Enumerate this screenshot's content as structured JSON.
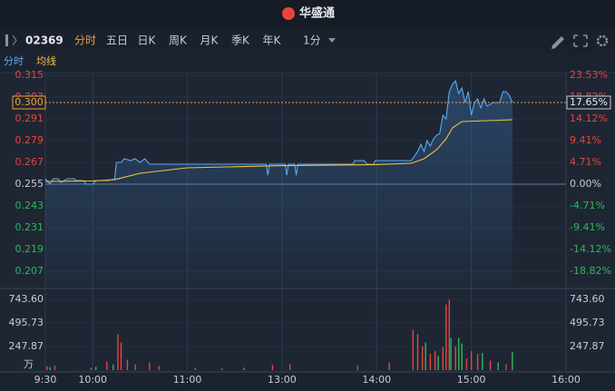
{
  "header": {
    "logo": "华盛通"
  },
  "toolbar": {
    "code": "02369",
    "tabs": [
      "分时",
      "五日",
      "日K",
      "周K",
      "月K",
      "季K",
      "年K"
    ],
    "period": "1分"
  },
  "chart_data": {
    "type": "line",
    "xlim": [
      0,
      330
    ],
    "xticks": [
      {
        "value": 0,
        "label": "9:30"
      },
      {
        "value": 30,
        "label": "10:00"
      },
      {
        "value": 90,
        "label": "11:00"
      },
      {
        "value": 150,
        "label": "13:00"
      },
      {
        "value": 210,
        "label": "14:00"
      },
      {
        "value": 270,
        "label": "15:00"
      },
      {
        "value": 330,
        "label": "16:00"
      }
    ],
    "ylim": [
      0.199,
      0.3165
    ],
    "yticks": [
      0.315,
      0.303,
      0.291,
      0.279,
      0.267,
      0.255,
      0.243,
      0.231,
      0.219,
      0.207
    ],
    "y2lim": [
      -21.96,
      24.12
    ],
    "y2ticks": [
      {
        "value": 23.53,
        "label": "23.53%"
      },
      {
        "value": 18.82,
        "label": "18.82%"
      },
      {
        "value": 14.12,
        "label": "14.12%"
      },
      {
        "value": 9.41,
        "label": "9.41%"
      },
      {
        "value": 4.71,
        "label": "4.71%"
      },
      {
        "value": 0,
        "label": "0.00%"
      },
      {
        "value": -4.71,
        "label": "-4.71%"
      },
      {
        "value": -9.41,
        "label": "-9.41%"
      },
      {
        "value": -14.12,
        "label": "-14.12%"
      },
      {
        "value": -18.82,
        "label": "-18.82%"
      }
    ],
    "series": [
      {
        "name": "分时",
        "color": "#5aa9f0",
        "x": [
          0,
          3,
          5,
          8,
          10,
          14,
          18,
          20,
          24,
          26,
          30,
          32,
          40,
          44,
          45,
          48,
          50,
          54,
          57,
          60,
          63,
          66,
          100,
          140,
          141,
          142,
          152,
          153,
          154,
          158,
          159,
          160,
          195,
          196,
          202,
          204,
          208,
          209,
          215,
          232,
          236,
          238,
          240,
          242,
          244,
          246,
          248,
          250,
          252,
          254,
          256,
          258,
          260,
          262,
          264,
          266,
          268,
          270,
          272,
          274,
          276,
          278,
          280,
          284,
          288,
          290,
          292,
          294,
          296
        ],
        "values": [
          0.258,
          0.255,
          0.258,
          0.258,
          0.256,
          0.258,
          0.258,
          0.257,
          0.257,
          0.255,
          0.255,
          0.257,
          0.257,
          0.258,
          0.267,
          0.267,
          0.269,
          0.268,
          0.269,
          0.267,
          0.269,
          0.266,
          0.266,
          0.266,
          0.26,
          0.266,
          0.266,
          0.26,
          0.266,
          0.266,
          0.26,
          0.266,
          0.266,
          0.268,
          0.268,
          0.266,
          0.266,
          0.268,
          0.268,
          0.268,
          0.273,
          0.277,
          0.273,
          0.279,
          0.276,
          0.28,
          0.282,
          0.283,
          0.293,
          0.291,
          0.306,
          0.31,
          0.312,
          0.305,
          0.308,
          0.3,
          0.306,
          0.293,
          0.3,
          0.302,
          0.297,
          0.302,
          0.298,
          0.3,
          0.3,
          0.306,
          0.306,
          0.304,
          0.3
        ]
      },
      {
        "name": "均线",
        "color": "#f0c040",
        "x": [
          0,
          30,
          44,
          60,
          90,
          150,
          210,
          232,
          240,
          248,
          254,
          258,
          264,
          280,
          296
        ],
        "values": [
          0.2565,
          0.2568,
          0.2575,
          0.261,
          0.264,
          0.2652,
          0.2658,
          0.2665,
          0.269,
          0.274,
          0.28,
          0.286,
          0.2895,
          0.29,
          0.2905
        ]
      }
    ],
    "last_price": 0.3,
    "last_price_label": "0.300",
    "last_change_label": "17.65%",
    "volume": {
      "type": "bar",
      "ylim": [
        0,
        820
      ],
      "yticks": [
        {
          "value": 247.87,
          "label": "247.87"
        },
        {
          "value": 495.73,
          "label": "495.73"
        },
        {
          "value": 743.6,
          "label": "743.60"
        }
      ],
      "unit": "万",
      "x": [
        1,
        3,
        6,
        29,
        32,
        39,
        43,
        46,
        48,
        52,
        57,
        66,
        72,
        95,
        112,
        126,
        144,
        155,
        198,
        218,
        233,
        236,
        239,
        241,
        244,
        247,
        249,
        252,
        254,
        256,
        257,
        260,
        262,
        264,
        267,
        270,
        274,
        277,
        282,
        287,
        292,
        296
      ],
      "values": [
        40,
        30,
        45,
        25,
        35,
        90,
        60,
        380,
        290,
        110,
        60,
        80,
        45,
        25,
        20,
        25,
        55,
        60,
        50,
        80,
        420,
        380,
        250,
        290,
        170,
        200,
        150,
        240,
        690,
        740,
        340,
        250,
        340,
        280,
        120,
        200,
        170,
        180,
        100,
        80,
        60,
        190
      ],
      "colors": [
        "#e8453c",
        "#2eb85c",
        "#e8453c",
        "#e8453c",
        "#2eb85c",
        "#e8453c",
        "#2eb85c",
        "#e8453c",
        "#e8453c",
        "#e8453c",
        "#e8453c",
        "#e8453c",
        "#e8453c",
        "#e8453c",
        "#e8453c",
        "#2eb85c",
        "#e8453c",
        "#e8453c",
        "#e8453c",
        "#e8453c",
        "#e8453c",
        "#e8453c",
        "#e8453c",
        "#2eb85c",
        "#e8453c",
        "#e8453c",
        "#2eb85c",
        "#e8453c",
        "#e8453c",
        "#e8453c",
        "#2eb85c",
        "#e8453c",
        "#2eb85c",
        "#2eb85c",
        "#e8453c",
        "#e8453c",
        "#e8453c",
        "#2eb85c",
        "#e8453c",
        "#2eb85c",
        "#e8453c",
        "#2eb85c"
      ]
    }
  }
}
